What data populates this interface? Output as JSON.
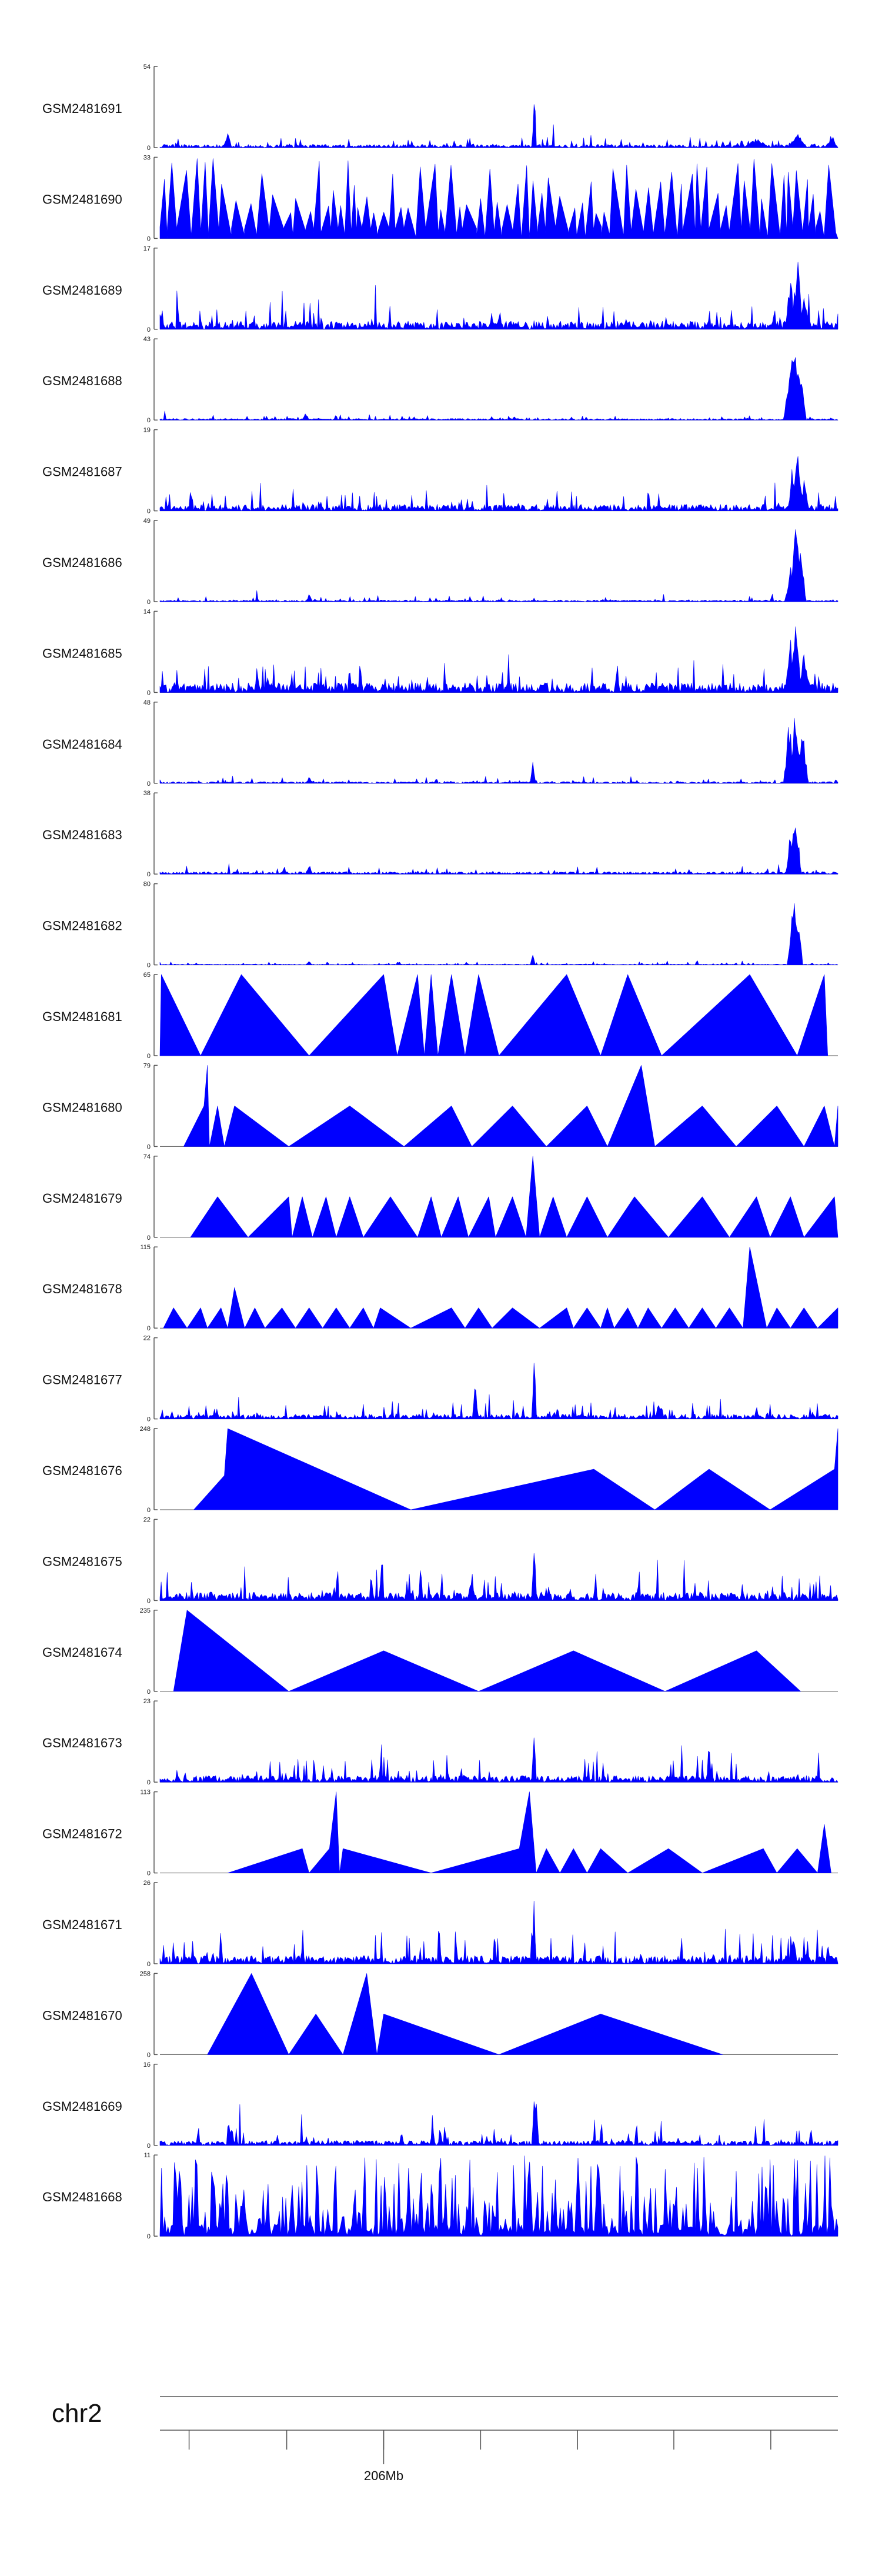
{
  "chart_data": {
    "type": "area",
    "fill_color": "#0000ff",
    "axis_color": "#555555",
    "x_range": [
      0,
      100
    ],
    "tracks": [
      {
        "name": "GSM2481691",
        "ymax": 54,
        "style": "dense",
        "seed": 11,
        "base": 0.04,
        "noise": 0.1,
        "spikes": [
          [
            10,
            0.22,
            0.6
          ],
          [
            55.2,
            1.0,
            0.3
          ],
          [
            88,
            0.12,
            2
          ],
          [
            94,
            0.18,
            1.5
          ],
          [
            99,
            0.15,
            1
          ]
        ]
      },
      {
        "name": "GSM2481690",
        "ymax": 33,
        "style": "spiky",
        "seed": 12,
        "count": 70,
        "min": 0.3,
        "max": 1.0,
        "fill": 0.15
      },
      {
        "name": "GSM2481689",
        "ymax": 17,
        "style": "dense",
        "seed": 13,
        "base": 0.1,
        "noise": 0.25,
        "spikes": [
          [
            94,
            1.0,
            0.8
          ],
          [
            93,
            0.7,
            0.8
          ],
          [
            95,
            0.4,
            1
          ]
        ]
      },
      {
        "name": "GSM2481688",
        "ymax": 43,
        "style": "dense",
        "seed": 14,
        "base": 0.02,
        "noise": 0.05,
        "spikes": [
          [
            21.5,
            0.12,
            0.5
          ],
          [
            93.5,
            1.0,
            1.2
          ],
          [
            94.3,
            0.9,
            1.0
          ],
          [
            92.8,
            0.6,
            0.8
          ]
        ]
      },
      {
        "name": "GSM2481687",
        "ymax": 19,
        "style": "dense",
        "seed": 15,
        "base": 0.08,
        "noise": 0.22,
        "spikes": [
          [
            94,
            1.0,
            0.7
          ],
          [
            93.3,
            0.6,
            0.6
          ],
          [
            95,
            0.4,
            0.8
          ]
        ]
      },
      {
        "name": "GSM2481686",
        "ymax": 49,
        "style": "dense",
        "seed": 16,
        "base": 0.02,
        "noise": 0.05,
        "spikes": [
          [
            22,
            0.1,
            0.5
          ],
          [
            93.8,
            1.0,
            1.0
          ],
          [
            94.5,
            0.8,
            0.8
          ],
          [
            93,
            0.5,
            0.8
          ]
        ]
      },
      {
        "name": "GSM2481685",
        "ymax": 14,
        "style": "dense",
        "seed": 17,
        "base": 0.12,
        "noise": 0.3,
        "spikes": [
          [
            93.8,
            1.0,
            0.8
          ],
          [
            93,
            0.75,
            0.8
          ],
          [
            95,
            0.5,
            1
          ]
        ]
      },
      {
        "name": "GSM2481684",
        "ymax": 48,
        "style": "dense",
        "seed": 18,
        "base": 0.02,
        "noise": 0.05,
        "spikes": [
          [
            22,
            0.08,
            0.6
          ],
          [
            55,
            0.4,
            0.4
          ],
          [
            92.8,
            0.9,
            0.8
          ],
          [
            93.7,
            1.0,
            1.0
          ],
          [
            94.8,
            0.8,
            0.8
          ]
        ]
      },
      {
        "name": "GSM2481683",
        "ymax": 38,
        "style": "dense",
        "seed": 19,
        "base": 0.03,
        "noise": 0.08,
        "spikes": [
          [
            22,
            0.15,
            0.5
          ],
          [
            93.7,
            1.0,
            0.9
          ],
          [
            93,
            0.6,
            0.6
          ]
        ]
      },
      {
        "name": "GSM2481682",
        "ymax": 80,
        "style": "dense",
        "seed": 20,
        "base": 0.01,
        "noise": 0.03,
        "spikes": [
          [
            22,
            0.08,
            0.4
          ],
          [
            55,
            0.18,
            0.3
          ],
          [
            93.5,
            1.0,
            1.0
          ],
          [
            94.2,
            0.8,
            0.6
          ]
        ]
      },
      {
        "name": "GSM2481681",
        "ymax": 65,
        "style": "tri",
        "seed": 21,
        "points": [
          [
            0,
            0
          ],
          [
            0.2,
            1.0
          ],
          [
            6,
            0
          ],
          [
            12,
            1.0
          ],
          [
            22,
            0
          ],
          [
            33,
            1.0
          ],
          [
            35,
            0
          ],
          [
            38,
            1.0
          ],
          [
            39,
            0
          ],
          [
            40,
            1.0
          ],
          [
            41,
            0
          ],
          [
            43,
            1.0
          ],
          [
            45,
            0
          ],
          [
            47,
            1.0
          ],
          [
            50,
            0
          ],
          [
            60,
            1.0
          ],
          [
            65,
            0
          ],
          [
            69,
            1.0
          ],
          [
            74,
            0
          ],
          [
            87,
            1.0
          ],
          [
            94,
            0
          ],
          [
            98,
            1.0
          ],
          [
            98.5,
            0
          ]
        ]
      },
      {
        "name": "GSM2481680",
        "ymax": 79,
        "style": "tri",
        "seed": 22,
        "points": [
          [
            3.5,
            0
          ],
          [
            6.5,
            0.5
          ],
          [
            7,
            1.0
          ],
          [
            7.3,
            0
          ],
          [
            8.5,
            0.5
          ],
          [
            9.5,
            0
          ],
          [
            11,
            0.5
          ],
          [
            19,
            0
          ],
          [
            28,
            0.5
          ],
          [
            36,
            0
          ],
          [
            43,
            0.5
          ],
          [
            46,
            0
          ],
          [
            52,
            0.5
          ],
          [
            57,
            0
          ],
          [
            63,
            0.5
          ],
          [
            66,
            0
          ],
          [
            71,
            1.0
          ],
          [
            73,
            0
          ],
          [
            80,
            0.5
          ],
          [
            85,
            0
          ],
          [
            91,
            0.5
          ],
          [
            95,
            0
          ],
          [
            98,
            0.5
          ],
          [
            99.5,
            0
          ],
          [
            100,
            0.5
          ]
        ]
      },
      {
        "name": "GSM2481679",
        "ymax": 74,
        "style": "tri",
        "seed": 23,
        "points": [
          [
            4.5,
            0
          ],
          [
            8.5,
            0.5
          ],
          [
            13,
            0
          ],
          [
            19,
            0.5
          ],
          [
            19.5,
            0
          ],
          [
            21,
            0.5
          ],
          [
            22.5,
            0
          ],
          [
            24.5,
            0.5
          ],
          [
            26,
            0
          ],
          [
            28,
            0.5
          ],
          [
            30,
            0
          ],
          [
            34,
            0.5
          ],
          [
            38,
            0
          ],
          [
            40,
            0.5
          ],
          [
            41.5,
            0
          ],
          [
            44,
            0.5
          ],
          [
            45.5,
            0
          ],
          [
            48.5,
            0.5
          ],
          [
            49.5,
            0
          ],
          [
            52,
            0.5
          ],
          [
            54,
            0
          ],
          [
            55,
            1.0
          ],
          [
            56,
            0
          ],
          [
            58,
            0.5
          ],
          [
            60,
            0
          ],
          [
            63,
            0.5
          ],
          [
            66,
            0
          ],
          [
            70,
            0.5
          ],
          [
            75,
            0
          ],
          [
            80,
            0.5
          ],
          [
            84,
            0
          ],
          [
            88,
            0.5
          ],
          [
            90,
            0
          ],
          [
            93,
            0.5
          ],
          [
            95,
            0
          ],
          [
            99.5,
            0.5
          ],
          [
            100,
            0
          ]
        ]
      },
      {
        "name": "GSM2481678",
        "ymax": 115,
        "style": "tri",
        "seed": 24,
        "points": [
          [
            0.5,
            0
          ],
          [
            2,
            0.25
          ],
          [
            4,
            0
          ],
          [
            6,
            0.25
          ],
          [
            7,
            0
          ],
          [
            9,
            0.25
          ],
          [
            10,
            0
          ],
          [
            11,
            0.5
          ],
          [
            12.5,
            0
          ],
          [
            14,
            0.25
          ],
          [
            15.5,
            0
          ],
          [
            18,
            0.25
          ],
          [
            20,
            0
          ],
          [
            22,
            0.25
          ],
          [
            24,
            0
          ],
          [
            26,
            0.25
          ],
          [
            28,
            0
          ],
          [
            30,
            0.25
          ],
          [
            31.5,
            0
          ],
          [
            32.5,
            0.25
          ],
          [
            37,
            0
          ],
          [
            43,
            0.25
          ],
          [
            45,
            0
          ],
          [
            47,
            0.25
          ],
          [
            49,
            0
          ],
          [
            52,
            0.25
          ],
          [
            56,
            0
          ],
          [
            60,
            0.25
          ],
          [
            61,
            0
          ],
          [
            63,
            0.25
          ],
          [
            65,
            0
          ],
          [
            66,
            0.25
          ],
          [
            67,
            0
          ],
          [
            69,
            0.25
          ],
          [
            70.5,
            0
          ],
          [
            72,
            0.25
          ],
          [
            74,
            0
          ],
          [
            76,
            0.25
          ],
          [
            78,
            0
          ],
          [
            80,
            0.25
          ],
          [
            82,
            0
          ],
          [
            84,
            0.25
          ],
          [
            86,
            0
          ],
          [
            87,
            1.0
          ],
          [
            89.5,
            0
          ],
          [
            91,
            0.25
          ],
          [
            93,
            0
          ],
          [
            95,
            0.25
          ],
          [
            97,
            0
          ],
          [
            100,
            0.25
          ]
        ]
      },
      {
        "name": "GSM2481677",
        "ymax": 22,
        "style": "dense",
        "seed": 25,
        "base": 0.06,
        "noise": 0.15,
        "spikes": [
          [
            46.5,
            0.65,
            0.4
          ],
          [
            55.2,
            1.0,
            0.3
          ],
          [
            73.5,
            0.25,
            0.5
          ]
        ]
      },
      {
        "name": "GSM2481676",
        "ymax": 248,
        "style": "tri",
        "seed": 26,
        "points": [
          [
            5,
            0
          ],
          [
            9.5,
            0.42
          ],
          [
            10,
            1.0
          ],
          [
            37,
            0
          ],
          [
            64,
            0.5
          ],
          [
            73,
            0
          ],
          [
            81,
            0.5
          ],
          [
            90,
            0
          ],
          [
            99.5,
            0.5
          ],
          [
            100,
            1.0
          ],
          [
            100,
            0
          ]
        ]
      },
      {
        "name": "GSM2481675",
        "ymax": 22,
        "style": "dense",
        "seed": 27,
        "base": 0.1,
        "noise": 0.3,
        "spikes": [
          [
            55.2,
            1.0,
            0.3
          ],
          [
            46,
            0.4,
            0.5
          ]
        ]
      },
      {
        "name": "GSM2481674",
        "ymax": 235,
        "style": "tri",
        "seed": 28,
        "points": [
          [
            2,
            0
          ],
          [
            4,
            1.0
          ],
          [
            19,
            0
          ],
          [
            33,
            0.5
          ],
          [
            47,
            0
          ],
          [
            61,
            0.5
          ],
          [
            74.5,
            0
          ],
          [
            88,
            0.5
          ],
          [
            94.5,
            0
          ]
        ]
      },
      {
        "name": "GSM2481673",
        "ymax": 23,
        "style": "dense",
        "seed": 29,
        "base": 0.08,
        "noise": 0.3,
        "spikes": [
          [
            55.2,
            1.0,
            0.3
          ],
          [
            81,
            0.55,
            0.4
          ]
        ]
      },
      {
        "name": "GSM2481672",
        "ymax": 113,
        "style": "tri",
        "seed": 30,
        "points": [
          [
            10,
            0
          ],
          [
            21,
            0.3
          ],
          [
            22,
            0
          ],
          [
            25,
            0.3
          ],
          [
            26,
            1.0
          ],
          [
            26.5,
            0
          ],
          [
            27,
            0.3
          ],
          [
            40,
            0
          ],
          [
            53,
            0.3
          ],
          [
            54.5,
            1.0
          ],
          [
            55.5,
            0
          ],
          [
            57,
            0.3
          ],
          [
            59,
            0
          ],
          [
            61,
            0.3
          ],
          [
            63,
            0
          ],
          [
            65,
            0.3
          ],
          [
            69,
            0
          ],
          [
            75,
            0.3
          ],
          [
            80,
            0
          ],
          [
            89,
            0.3
          ],
          [
            91,
            0
          ],
          [
            94,
            0.3
          ],
          [
            97,
            0
          ],
          [
            98,
            0.6
          ],
          [
            99,
            0
          ]
        ]
      },
      {
        "name": "GSM2481671",
        "ymax": 26,
        "style": "dense",
        "seed": 31,
        "base": 0.1,
        "noise": 0.35,
        "spikes": [
          [
            55.2,
            1.0,
            0.3
          ],
          [
            93.5,
            0.5,
            0.5
          ]
        ]
      },
      {
        "name": "GSM2481670",
        "ymax": 258,
        "style": "tri",
        "seed": 32,
        "points": [
          [
            7,
            0
          ],
          [
            13.5,
            1.0
          ],
          [
            19,
            0
          ],
          [
            23,
            0.5
          ],
          [
            27,
            0
          ],
          [
            30.5,
            1.0
          ],
          [
            32,
            0
          ],
          [
            33,
            0.5
          ],
          [
            50,
            0
          ],
          [
            65,
            0.5
          ],
          [
            83,
            0
          ]
        ]
      },
      {
        "name": "GSM2481669",
        "ymax": 16,
        "style": "dense",
        "seed": 33,
        "base": 0.06,
        "noise": 0.2,
        "spikes": [
          [
            55.2,
            1.0,
            0.35
          ],
          [
            55.6,
            0.7,
            0.3
          ],
          [
            10.5,
            0.3,
            0.5
          ]
        ]
      },
      {
        "name": "GSM2481668",
        "ymax": 11,
        "style": "spiky_dense",
        "seed": 34,
        "min": 0.2,
        "max": 1.0
      }
    ],
    "genome_axis": {
      "chromosome": "chr2",
      "tick_label": "206Mb",
      "tick_label_position": 33,
      "tick_positions": [
        4.3,
        18.7,
        33,
        47.3,
        61.6,
        75.8,
        90.1
      ]
    }
  }
}
